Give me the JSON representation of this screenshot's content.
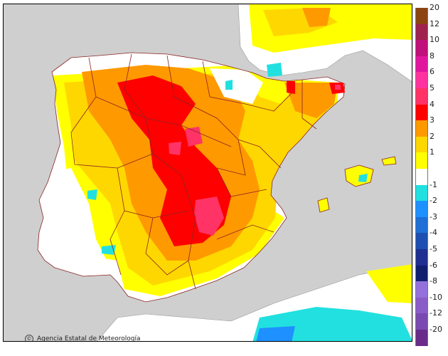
{
  "map": {
    "credit": "Agencia Estatal de Meteorología",
    "colors": {
      "sea": "#cfcfcf",
      "neutral": "#ffffff",
      "border": "#8b2323",
      "c1": "#ffff00",
      "c2": "#ffd700",
      "c3": "#ff9900",
      "c4": "#ff0000",
      "c5": "#ff3366"
    }
  },
  "legend": {
    "entries": [
      {
        "label": "20",
        "color": "#8b4513"
      },
      {
        "label": "12",
        "color": "#a0224e"
      },
      {
        "label": "10",
        "color": "#c0107a"
      },
      {
        "label": "8",
        "color": "#e0179e"
      },
      {
        "label": "6",
        "color": "#ff33a0"
      },
      {
        "label": "5",
        "color": "#ff3366"
      },
      {
        "label": "4",
        "color": "#ff0000"
      },
      {
        "label": "3",
        "color": "#ff9900"
      },
      {
        "label": "2",
        "color": "#ffd700"
      },
      {
        "label": "1",
        "color": "#ffff00"
      },
      {
        "label": "",
        "color": "#ffffff"
      },
      {
        "label": "-1",
        "color": "#22e0e0"
      },
      {
        "label": "-2",
        "color": "#1e90ff"
      },
      {
        "label": "-3",
        "color": "#1f6fd6"
      },
      {
        "label": "-4",
        "color": "#1e4fb0"
      },
      {
        "label": "-5",
        "color": "#1e2f90"
      },
      {
        "label": "-6",
        "color": "#0f1f6e"
      },
      {
        "label": "-8",
        "color": "#9370db"
      },
      {
        "label": "-10",
        "color": "#8a5cc8"
      },
      {
        "label": "-12",
        "color": "#7a4ab0"
      },
      {
        "label": "-20",
        "color": "#6a2c8a"
      }
    ]
  }
}
